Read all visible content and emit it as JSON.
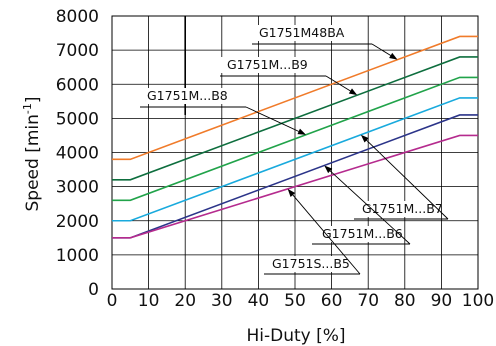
{
  "chart_data": {
    "type": "line",
    "xlabel": "Hi-Duty [%]",
    "ylabel_prefix": "Speed [min",
    "ylabel_exp": "-1",
    "ylabel_suffix": "]",
    "xlim": [
      0,
      100
    ],
    "ylim": [
      0,
      8000
    ],
    "x_ticks": [
      "0",
      "10",
      "20",
      "30",
      "40",
      "50",
      "60",
      "70",
      "80",
      "90",
      "100"
    ],
    "y_ticks": [
      "0",
      "1000",
      "2000",
      "3000",
      "4000",
      "5000",
      "6000",
      "7000",
      "8000"
    ],
    "grid": true,
    "series": [
      {
        "name": "G1751M48BA",
        "color": "#f07b2a",
        "x": [
          0,
          5,
          95,
          100
        ],
        "y": [
          3800,
          3800,
          7400,
          7400
        ]
      },
      {
        "name": "G1751M...B9",
        "color": "#0e6e3e",
        "x": [
          0,
          5,
          95,
          100
        ],
        "y": [
          3200,
          3200,
          6800,
          6800
        ]
      },
      {
        "name": "G1751M...B8",
        "color": "#21a34a",
        "x": [
          0,
          5,
          95,
          100
        ],
        "y": [
          2600,
          2600,
          6200,
          6200
        ]
      },
      {
        "name": "G1751M...B7",
        "color": "#19aadd",
        "x": [
          0,
          5,
          95,
          100
        ],
        "y": [
          2000,
          2000,
          5600,
          5600
        ]
      },
      {
        "name": "G1751M...B6",
        "color": "#2b3489",
        "x": [
          0,
          5,
          95,
          100
        ],
        "y": [
          1500,
          1500,
          5100,
          5100
        ]
      },
      {
        "name": "G1751S...B5",
        "color": "#b52b8e",
        "x": [
          0,
          5,
          95,
          100
        ],
        "y": [
          1500,
          1500,
          4500,
          4500
        ]
      }
    ],
    "annotations": [
      {
        "label": "G1751M48BA",
        "series": 0
      },
      {
        "label": "G1751M...B9",
        "series": 1
      },
      {
        "label": "G1751M...B8",
        "series": 2
      },
      {
        "label": "G1751M...B7",
        "series": 3
      },
      {
        "label": "G1751M...B6",
        "series": 4
      },
      {
        "label": "G1751S...B5",
        "series": 5
      }
    ]
  }
}
